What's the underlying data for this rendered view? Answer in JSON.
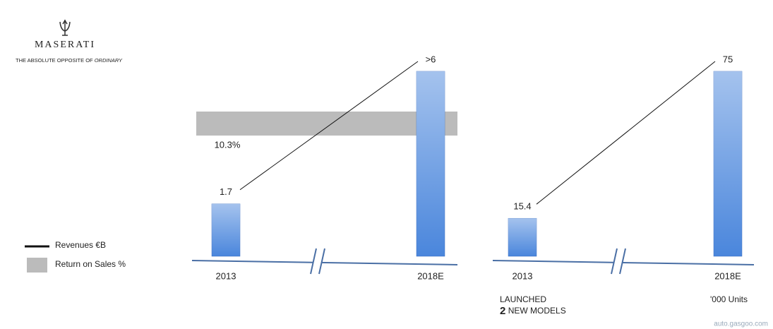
{
  "logo": {
    "brand": "MASERATI",
    "tagline": "THE ABSOLUTE OPPOSITE OF",
    "tagline_italic": "ORDINARY"
  },
  "legend": [
    {
      "label": "Revenues €B"
    },
    {
      "label": "Return on Sales %"
    }
  ],
  "chart_data": [
    {
      "type": "bar",
      "categories": [
        "2013",
        "2018E"
      ],
      "values": [
        1.7,
        6
      ],
      "value_labels": [
        "1.7",
        ">6"
      ],
      "color": "#4a86dc",
      "return_on_sales": {
        "value": 10.3,
        "label": "10.3%"
      },
      "band_color": "#bbbbbb"
    },
    {
      "type": "bar",
      "categories": [
        "2013",
        "2018E"
      ],
      "values": [
        15.4,
        75
      ],
      "value_labels": [
        "15.4",
        "75"
      ],
      "color": "#4a86dc",
      "notes": [
        "LAUNCHED",
        "2",
        "NEW MODELS"
      ],
      "unit": "'000 Units"
    }
  ],
  "watermark": "auto.gasgoo.com"
}
